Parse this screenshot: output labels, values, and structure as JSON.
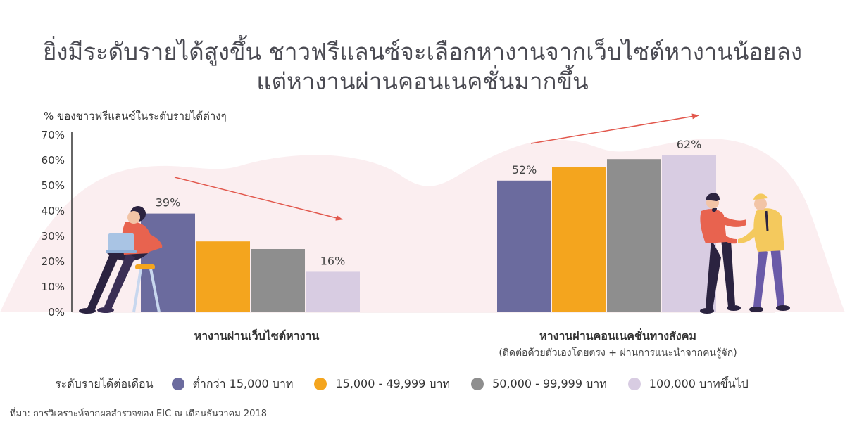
{
  "title": {
    "line1": "ยิ่งมีระดับรายได้สูงขึ้น ชาวฟรีแลนซ์จะเลือกหางานจากเว็บไซต์หางานน้อยลง",
    "line2": "แต่หางานผ่านคอนเนคชั่นมากขึ้น"
  },
  "legend": {
    "label": "ระดับรายได้ต่อเดือน",
    "items": [
      {
        "label": "ต่ำกว่า 15,000 บาท",
        "color": "#6b6b9e"
      },
      {
        "label": "15,000 - 49,999 บาท",
        "color": "#f4a51e"
      },
      {
        "label": "50,000 - 99,999 บาท",
        "color": "#8e8e8e"
      },
      {
        "label": "100,000 บาทขึ้นไป",
        "color": "#d8cce2"
      }
    ]
  },
  "source": "ที่มา: การวิเคราะห์จากผลสำรวจของ EIC ณ เดือนธันวาคม 2018",
  "colors": {
    "background_wave": "#fbeef0",
    "trend_arrow": "#e2574c",
    "axis_line": "#333333"
  },
  "illustrations": [
    "woman-with-laptop-icon",
    "handshake-people-icon"
  ],
  "chart_data": {
    "type": "bar",
    "ylabel": "% ของชาวฟรีแลนซ์ในระดับรายได้ต่างๆ",
    "ylim": [
      0,
      70
    ],
    "yticks": [
      "0%",
      "10%",
      "20%",
      "30%",
      "40%",
      "50%",
      "60%",
      "70%"
    ],
    "categories": [
      {
        "label": "หางานผ่านเว็บไซต์หางาน",
        "sublabel": ""
      },
      {
        "label": "หางานผ่านคอนเนคชั่นทางสังคม",
        "sublabel": "(ติดต่อด้วยตัวเองโดยตรง + ผ่านการแนะนำจากคนรู้จัก)"
      }
    ],
    "series": [
      {
        "name": "ต่ำกว่า 15,000 บาท",
        "values": [
          39,
          52
        ]
      },
      {
        "name": "15,000 - 49,999 บาท",
        "values": [
          28,
          57.5
        ]
      },
      {
        "name": "50,000 - 99,999 บาท",
        "values": [
          25,
          60.5
        ]
      },
      {
        "name": "100,000 บาทขึ้นไป",
        "values": [
          16,
          62
        ]
      }
    ],
    "data_labels": [
      {
        "category": 0,
        "series": 0,
        "text": "39%"
      },
      {
        "category": 0,
        "series": 3,
        "text": "16%"
      },
      {
        "category": 1,
        "series": 0,
        "text": "52%"
      },
      {
        "category": 1,
        "series": 3,
        "text": "62%"
      }
    ],
    "trends": [
      "down",
      "up"
    ],
    "grid": false,
    "legend_position": "bottom"
  }
}
